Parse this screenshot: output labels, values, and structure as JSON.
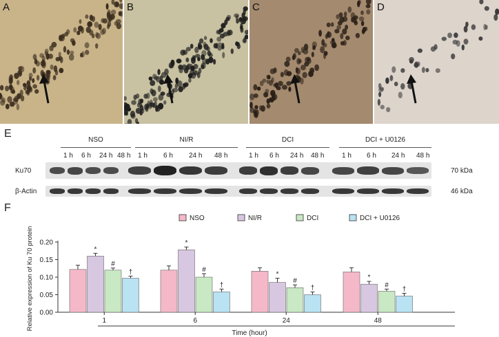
{
  "micrographs": [
    {
      "label": "A",
      "bg": "#c9b489"
    },
    {
      "label": "B",
      "bg": "#c8c1a2"
    },
    {
      "label": "C",
      "bg": "#a48a6e"
    },
    {
      "label": "D",
      "bg": "#ddd4cc"
    }
  ],
  "blot": {
    "panel_label": "E",
    "groups": [
      "NSO",
      "NI/R",
      "DCI",
      "DCI + U0126"
    ],
    "timepoints": [
      "1 h",
      "6 h",
      "24 h",
      "48 h"
    ],
    "rows": [
      "Ku70",
      "β-Actin"
    ],
    "sizes": [
      "70 kDa",
      "46 kDa"
    ],
    "ku70_intensity": [
      [
        0.55,
        0.6,
        0.55,
        0.55
      ],
      [
        0.65,
        0.95,
        0.75,
        0.7
      ],
      [
        0.7,
        0.8,
        0.7,
        0.6
      ],
      [
        0.6,
        0.65,
        0.6,
        0.45
      ]
    ]
  },
  "chart_data": {
    "type": "bar",
    "panel_label": "F",
    "categories": [
      "1",
      "6",
      "24",
      "48"
    ],
    "series": [
      {
        "name": "NSO",
        "values": [
          0.122,
          0.12,
          0.117,
          0.115
        ],
        "errors": [
          0.012,
          0.012,
          0.01,
          0.012
        ],
        "marks": [
          "",
          "",
          "",
          ""
        ],
        "color": "#f4b8c9"
      },
      {
        "name": "NI/R",
        "values": [
          0.16,
          0.178,
          0.085,
          0.08
        ],
        "errors": [
          0.008,
          0.008,
          0.012,
          0.008
        ],
        "marks": [
          "*",
          "*",
          "*",
          "*"
        ],
        "color": "#d8c7e0"
      },
      {
        "name": "DCI",
        "values": [
          0.12,
          0.1,
          0.07,
          0.06
        ],
        "errors": [
          0.006,
          0.01,
          0.008,
          0.006
        ],
        "marks": [
          "#",
          "#",
          "#",
          "#"
        ],
        "color": "#c9e8c4"
      },
      {
        "name": "DCI + U0126",
        "values": [
          0.097,
          0.058,
          0.05,
          0.046
        ],
        "errors": [
          0.006,
          0.008,
          0.008,
          0.008
        ],
        "marks": [
          "†",
          "†",
          "†",
          "†"
        ],
        "color": "#b9e2f2"
      }
    ],
    "xlabel": "Time (hour)",
    "ylabel": "Relative expression of Ku 70 protein",
    "ylim": [
      0,
      0.2
    ],
    "yticks": [
      "0.00",
      "0.05",
      "0.10",
      "0.15",
      "0.20"
    ],
    "legend_position": "top"
  }
}
